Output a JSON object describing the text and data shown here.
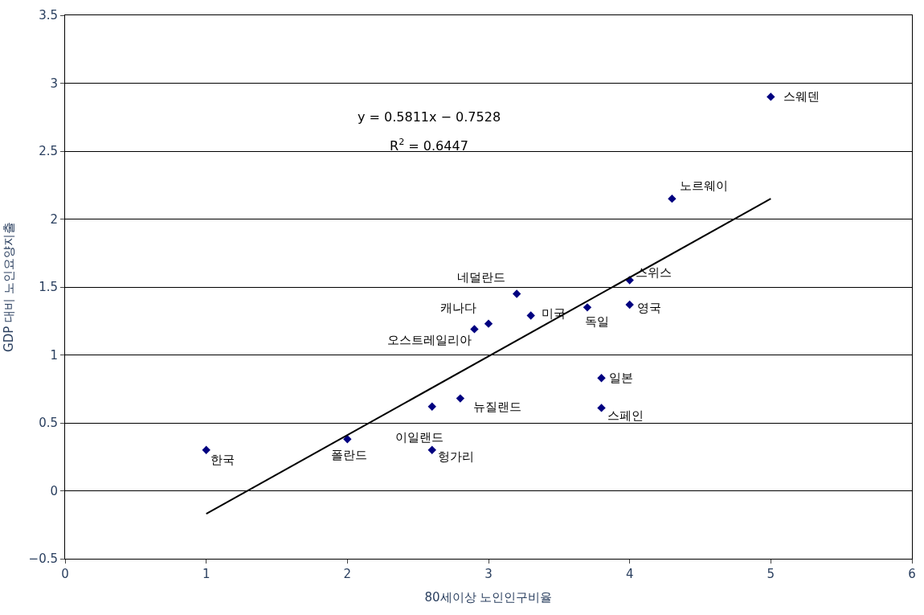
{
  "chart_data": {
    "type": "scatter",
    "xlabel": "80세이상 노인인구비율",
    "ylabel": "GDP 대비 노인요양지출",
    "xlim": [
      0,
      6
    ],
    "xticks": [
      0,
      1,
      2,
      3,
      4,
      5,
      6
    ],
    "ylim": [
      -0.5,
      3.5
    ],
    "yticks": [
      -0.5,
      0,
      0.5,
      1,
      1.5,
      2,
      2.5,
      3,
      3.5
    ],
    "grid": "y",
    "marker": "diamond",
    "series": [
      {
        "color": "#000080",
        "x": [
          1.0,
          2.0,
          2.6,
          2.6,
          2.8,
          2.9,
          3.0,
          3.2,
          3.3,
          3.7,
          4.0,
          4.0,
          3.8,
          3.8,
          4.3,
          5.0
        ],
        "values": [
          0.3,
          0.38,
          0.3,
          0.62,
          0.68,
          1.19,
          1.23,
          1.45,
          1.29,
          1.35,
          1.55,
          1.37,
          0.83,
          0.61,
          2.15,
          2.9
        ]
      },
      {
        "type": "line",
        "color": "#000000",
        "x": [
          1,
          5
        ],
        "values": [
          -0.17,
          2.15
        ],
        "marker": "none",
        "line_style": "solid"
      }
    ],
    "annotations": [
      {
        "text": "한국",
        "x": 1.0,
        "y": 0.3
      },
      {
        "text": "폴란드",
        "x": 2.0,
        "y": 0.38
      },
      {
        "text": "헝가리",
        "x": 2.6,
        "y": 0.3
      },
      {
        "text": "이일랜드",
        "x": 2.6,
        "y": 0.62
      },
      {
        "text": "뉴질랜드",
        "x": 2.8,
        "y": 0.68
      },
      {
        "text": "오스트레일리아",
        "x": 2.9,
        "y": 1.19
      },
      {
        "text": "캐나다",
        "x": 3.0,
        "y": 1.23
      },
      {
        "text": "네덜란드",
        "x": 3.2,
        "y": 1.45
      },
      {
        "text": "미국",
        "x": 3.3,
        "y": 1.29
      },
      {
        "text": "독일",
        "x": 3.7,
        "y": 1.35
      },
      {
        "text": "스위스",
        "x": 4.0,
        "y": 1.55
      },
      {
        "text": "영국",
        "x": 4.0,
        "y": 1.37
      },
      {
        "text": "일본",
        "x": 3.8,
        "y": 0.83
      },
      {
        "text": "스페인",
        "x": 3.8,
        "y": 0.61
      },
      {
        "text": "노르웨이",
        "x": 4.3,
        "y": 2.15
      },
      {
        "text": "스웨덴",
        "x": 5.0,
        "y": 2.9
      },
      "y = 0.5811x − 0.7528",
      "R$^{2}$ = 0.6447"
    ]
  }
}
